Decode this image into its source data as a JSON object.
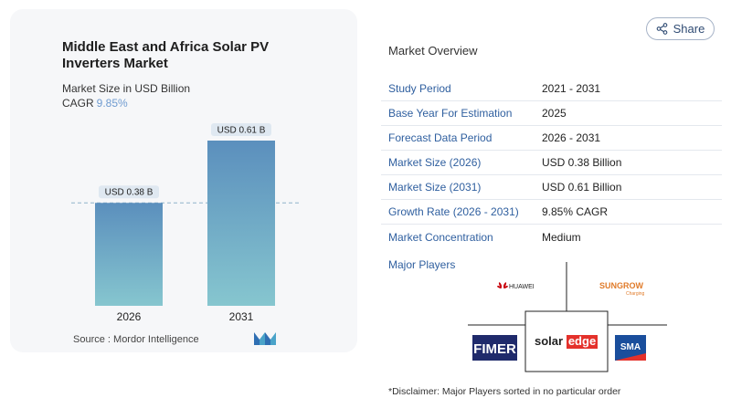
{
  "card": {
    "title": "Middle East and Africa Solar PV Inverters Market",
    "subtitle": "Market Size in USD Billion",
    "cagr_label": "CAGR",
    "cagr_value": "9.85%"
  },
  "chart_data": {
    "type": "bar",
    "categories": [
      "2026",
      "2031"
    ],
    "values": [
      0.38,
      0.61
    ],
    "value_labels": [
      "USD 0.38 B",
      "USD 0.61 B"
    ],
    "ylim": [
      0,
      0.61
    ],
    "reference_line_value": 0.38,
    "bar_gradient": [
      "#5b8fbd",
      "#86c6cf"
    ]
  },
  "source": {
    "label": "Source :",
    "name": "Mordor Intelligence"
  },
  "share": {
    "label": "Share"
  },
  "overview": {
    "title": "Market Overview",
    "rows": [
      {
        "label": "Study Period",
        "value": "2021 - 2031"
      },
      {
        "label": "Base Year For Estimation",
        "value": "2025"
      },
      {
        "label": "Forecast Data Period",
        "value": "2026 - 2031"
      },
      {
        "label": "Market Size (2026)",
        "value": "USD 0.38 Billion"
      },
      {
        "label": "Market Size (2031)",
        "value": "USD 0.61 Billion"
      },
      {
        "label": "Growth Rate (2026 - 2031)",
        "value": "9.85% CAGR"
      },
      {
        "label": "Market Concentration",
        "value": "Medium"
      }
    ]
  },
  "major_players": {
    "title": "Major Players",
    "logos": [
      "HUAWEI",
      "SUNGROW",
      "Charging",
      "FIMER",
      "solar",
      "edge",
      "SMA"
    ]
  },
  "disclaimer": "*Disclaimer: Major Players sorted in no particular order",
  "colors": {
    "label_blue": "#2f5f9f",
    "cagr_blue": "#6f9bd0",
    "fimer_navy": "#1f2a6b",
    "sma_blue": "#1a4e9c",
    "edge_red": "#e4312b",
    "huawei_red": "#c7000b",
    "sungrow_orange": "#e07b2a"
  }
}
